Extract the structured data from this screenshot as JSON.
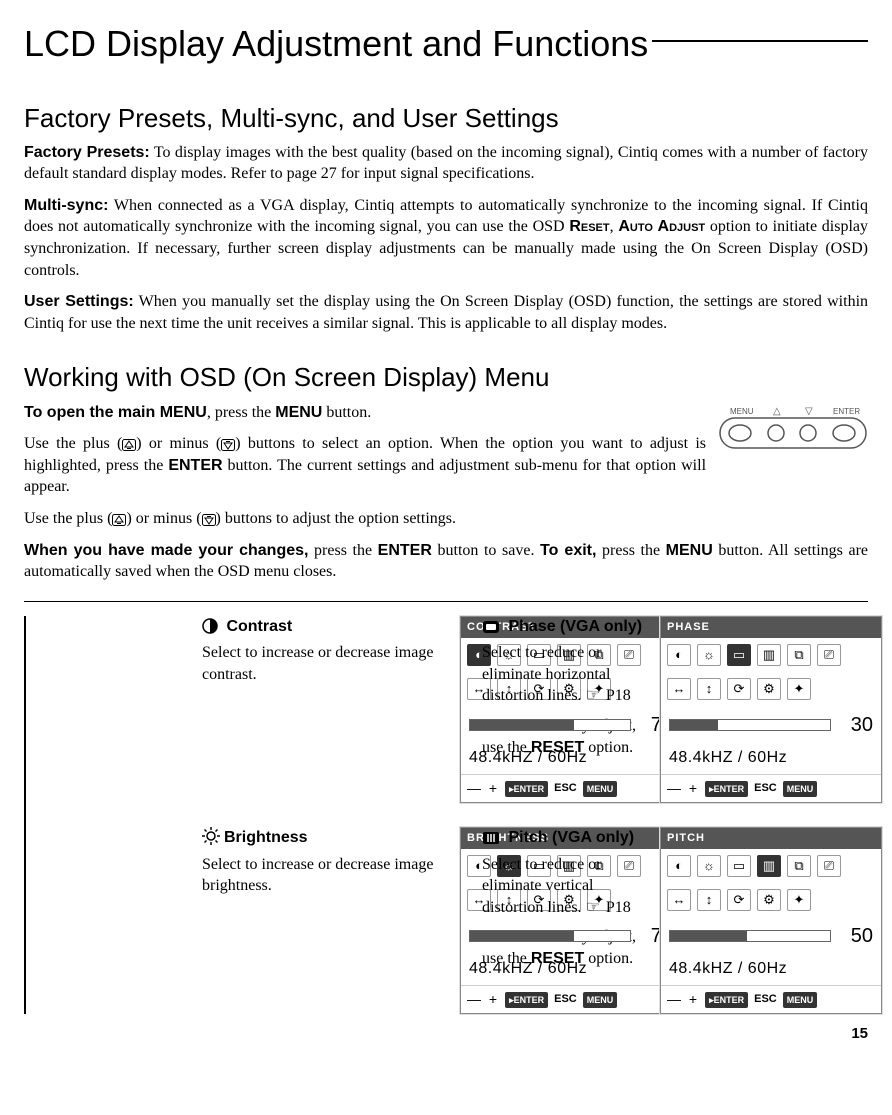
{
  "page": {
    "title": "LCD Display Adjustment and Functions",
    "number": "15"
  },
  "section1": {
    "heading": "Factory Presets, Multi-sync, and User Settings",
    "factory_label": "Factory Presets:",
    "factory_text": " To display images with the best quality (based on the incoming signal), Cintiq comes with a number of factory default standard display modes.  Refer to page 27 for input signal specifications.",
    "multisync_label": "Multi-sync:",
    "multisync_text_a": " When connected as a VGA display, Cintiq attempts to automatically synchronize to the incoming signal.  If Cintiq does not automatically synchronize with the incoming signal, you can use the OSD ",
    "multisync_reset": "Reset",
    "multisync_comma": ", ",
    "multisync_auto": "Auto Adjust",
    "multisync_text_b": " option to initiate display synchronization.  If necessary, further screen display adjustments can be manually made using the On Screen Display (OSD) controls.",
    "user_label": "User Settings:",
    "user_text": " When you manually set the display using the On Screen Display (OSD) function, the settings are stored within Cintiq for use the next time the unit receives a similar signal.  This is applicable to all display modes."
  },
  "section2": {
    "heading": "Working with OSD (On Screen Display) Menu",
    "open_label": "To open the main MENU",
    "open_text_a": ", press the ",
    "open_btn": "MENU",
    "open_text_b": " button.",
    "p2a": "Use the plus (",
    "p2b": ") or minus (",
    "p2c": ") buttons to select an option.  When the option you want to adjust is highlighted, press the ",
    "p2_enter": "ENTER",
    "p2d": " button.  The current settings and adjustment sub-menu for that option will appear.",
    "p3a": "Use the plus (",
    "p3b": ") or minus (",
    "p3c": ") buttons to adjust the option settings.",
    "p4_label": "When you have made your changes,",
    "p4a": " press the ",
    "p4_enter": "ENTER",
    "p4b": " button to save. ",
    "p4_exit": "To exit,",
    "p4c": " press the ",
    "p4_menu": "MENU",
    "p4d": " button. All settings are automatically saved when the OSD menu closes.",
    "btn_labels": {
      "menu": "MENU",
      "enter": "ENTER"
    }
  },
  "items": {
    "contrast": {
      "label": " Contrast",
      "desc": "Select to increase or decrease image contrast.",
      "osd": {
        "title": "CONTRAST",
        "value": "70",
        "fill_pct": 65,
        "freq": "48.4kHZ / 60Hz",
        "sel": 0
      }
    },
    "brightness": {
      "label": "Brightness",
      "desc": "Select to increase or decrease image brightness.",
      "osd": {
        "title": "BRIGHTNESS",
        "value": "70",
        "fill_pct": 65,
        "freq": "48.4kHZ / 60Hz",
        "sel": 1
      }
    },
    "phase": {
      "label": " Phase (VGA only)",
      "desc1a": "Select to reduce or eliminate horizontal distortion lines. ",
      "desc1b": " P18",
      "desc2a": "To automatically adjust, use the ",
      "desc2_reset": "RESET",
      "desc2b": " option.",
      "osd": {
        "title": "PHASE",
        "value": "30",
        "fill_pct": 30,
        "freq": "48.4kHZ / 60Hz",
        "sel": 2
      }
    },
    "pitch": {
      "label": " Pitch (VGA only)",
      "desc1a": "Select to reduce or eliminate vertical distortion lines. ",
      "desc1b": " P18",
      "desc2a": "To automatically adjust, use the ",
      "desc2_reset": "RESET",
      "desc2b": " option.",
      "osd": {
        "title": "PITCH",
        "value": "50",
        "fill_pct": 48,
        "freq": "48.4kHZ / 60Hz",
        "sel": 3
      }
    }
  },
  "osd_footer": {
    "enter": "ENTER",
    "esc": "ESC",
    "menu": "MENU"
  },
  "colors": {
    "text": "#000000",
    "osd_title_bg": "#555555",
    "osd_sel_bg": "#333333",
    "osd_body_bg": "#ffffff"
  }
}
